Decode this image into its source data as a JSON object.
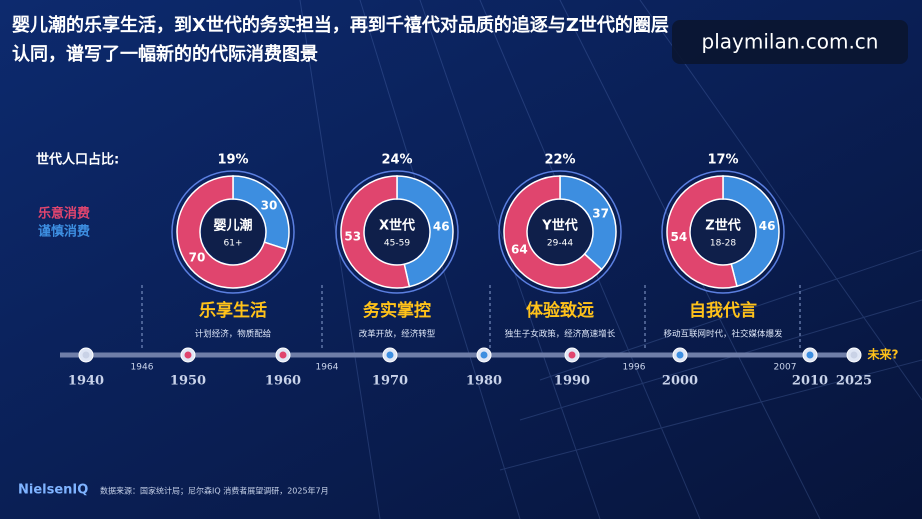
{
  "title_lines": [
    "婴儿潮的乐享生活，到X世代的务实担当，再到千禧代对品质的追逐与Z世代的圈层",
    "认同，谱写了一幅新的的代际消费图景"
  ],
  "watermark": "playmilan.com.cn",
  "share_label": "世代人口占比:",
  "legend": [
    {
      "name": "乐意消费",
      "color": "#e0456e"
    },
    {
      "name": "谨慎消费",
      "color": "#3d8ee0"
    }
  ],
  "generations": [
    {
      "name": "婴儿潮",
      "age": "61+",
      "share": "19%",
      "willing": 70,
      "cautious": 30,
      "phase": "乐享生活",
      "desc": "计划经济，物质配给"
    },
    {
      "name": "X世代",
      "age": "45-59",
      "share": "24%",
      "willing": 53,
      "cautious": 46,
      "phase": "务实掌控",
      "desc": "改革开放，经济转型"
    },
    {
      "name": "Y世代",
      "age": "29-44",
      "share": "22%",
      "willing": 64,
      "cautious": 37,
      "phase": "体验致远",
      "desc": "独生子女政策，经济高速增长"
    },
    {
      "name": "Z世代",
      "age": "18-28",
      "share": "17%",
      "willing": 54,
      "cautious": 46,
      "phase": "自我代言",
      "desc": "移动互联网时代，社交媒体爆发"
    }
  ],
  "timeline": [
    "1940",
    "1946",
    "1950",
    "1960",
    "1964",
    "1970",
    "1980",
    "1990",
    "1996",
    "2000",
    "2007",
    "2010",
    "2025",
    "未来?"
  ],
  "footer": {
    "brand": "NielsenIQ",
    "source": "数据来源：国家统计局；尼尔森IQ 消费者展望调研，2025年7月"
  }
}
